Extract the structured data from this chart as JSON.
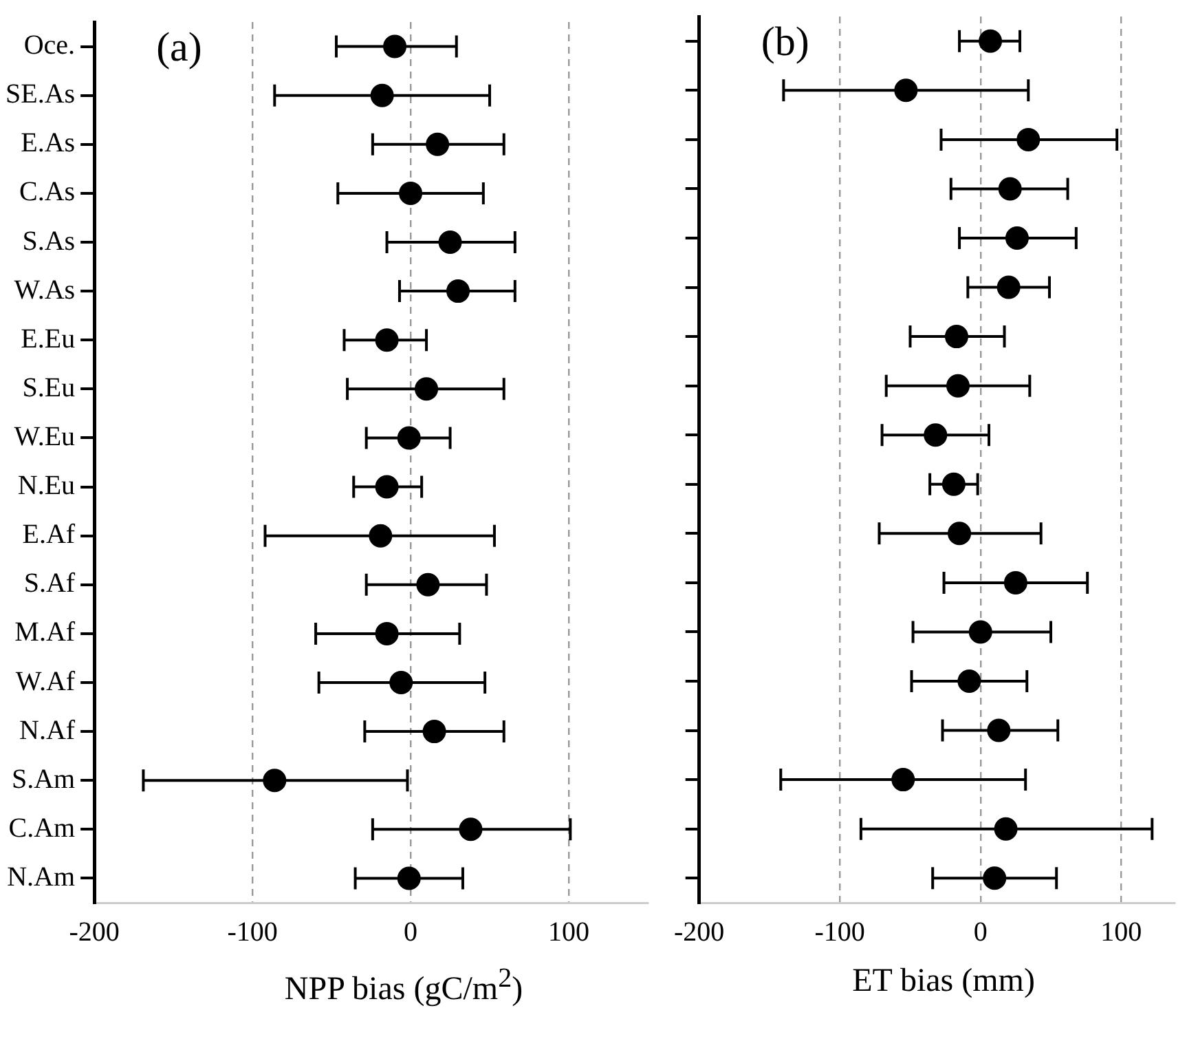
{
  "chart_data": [
    {
      "type": "scatter",
      "orientation": "horizontal",
      "xlabel": "NPP bias (gC/m$^{2}$)",
      "annotations": [
        "(a)"
      ],
      "marker": "circle",
      "grid": "x",
      "categories": [
        "Oce.",
        "SE.As",
        "E.As",
        "C.As",
        "S.As",
        "W.As",
        "E.Eu",
        "S.Eu",
        "W.Eu",
        "N.Eu",
        "E.Af",
        "S.Af",
        "M.Af",
        "W.Af",
        "N.Af",
        "S.Am",
        "C.Am",
        "N.Am"
      ],
      "series": [
        {
          "color": "#000000",
          "values": [
            -10,
            -18,
            17,
            0,
            25,
            30,
            -15,
            10,
            -1,
            -15,
            -19,
            11,
            -15,
            -6,
            15,
            -86,
            38,
            -1
          ],
          "errors": [
            [
              -47,
              29
            ],
            [
              -86,
              50
            ],
            [
              -24,
              59
            ],
            [
              -46,
              46
            ],
            [
              -15,
              66
            ],
            [
              -7,
              66
            ],
            [
              -42,
              10
            ],
            [
              -40,
              59
            ],
            [
              -28,
              25
            ],
            [
              -36,
              7
            ],
            [
              -92,
              53
            ],
            [
              -28,
              48
            ],
            [
              -60,
              31
            ],
            [
              -58,
              47
            ],
            [
              -29,
              59
            ],
            [
              -169,
              -2
            ],
            [
              -24,
              101
            ],
            [
              -35,
              33
            ]
          ]
        }
      ],
      "xlim": [
        -200,
        150
      ],
      "xticks": [
        -200,
        -100,
        0,
        100
      ]
    },
    {
      "type": "scatter",
      "orientation": "horizontal",
      "xlabel": "ET bias (mm)",
      "annotations": [
        "(b)"
      ],
      "marker": "circle",
      "grid": "x",
      "tick_labels": "x",
      "categories": [
        null,
        null,
        null,
        null,
        null,
        null,
        null,
        null,
        null,
        null,
        null,
        null,
        null,
        null,
        null,
        null,
        null,
        null
      ],
      "series": [
        {
          "color": "#000000",
          "values": [
            7,
            -53,
            34,
            21,
            26,
            20,
            -17,
            -16,
            -32,
            -19,
            -15,
            25,
            0,
            -8,
            13,
            -55,
            18,
            10
          ],
          "errors": [
            [
              -15,
              28
            ],
            [
              -140,
              34
            ],
            [
              -28,
              97
            ],
            [
              -21,
              62
            ],
            [
              -15,
              68
            ],
            [
              -9,
              49
            ],
            [
              -50,
              17
            ],
            [
              -67,
              35
            ],
            [
              -70,
              6
            ],
            [
              -36,
              -2
            ],
            [
              -72,
              43
            ],
            [
              -26,
              76
            ],
            [
              -48,
              50
            ],
            [
              -49,
              33
            ],
            [
              -27,
              55
            ],
            [
              -142,
              32
            ],
            [
              -85,
              122
            ],
            [
              -34,
              54
            ]
          ]
        }
      ],
      "xlim": [
        -200,
        138
      ],
      "xticks": [
        -200,
        -100,
        0,
        100
      ]
    }
  ]
}
